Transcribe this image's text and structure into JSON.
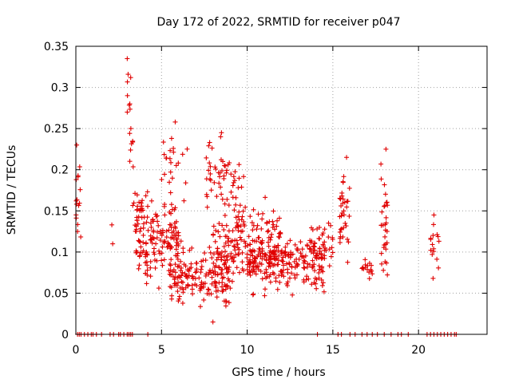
{
  "chart_data": {
    "type": "scatter",
    "title": "Day 172 of 2022, SRMTID for receiver p047",
    "xlabel": "GPS time / hours",
    "ylabel": "SRMTID / TECUs",
    "xlim": [
      0,
      24
    ],
    "ylim": [
      0,
      0.35
    ],
    "xticks": [
      0,
      5,
      10,
      15,
      20
    ],
    "yticks": [
      0,
      0.05,
      0.1,
      0.15,
      0.2,
      0.25,
      0.3,
      0.35
    ],
    "xtick_labels": [
      "0",
      "5",
      "10",
      "15",
      "20"
    ],
    "ytick_labels": [
      "0",
      "0.05",
      "0.1",
      "0.15",
      "0.2",
      "0.25",
      "0.3",
      "0.35"
    ],
    "grid": true,
    "marker": "+",
    "color": "#e00000",
    "series": [
      {
        "name": "SRMTID",
        "clusters": [
          {
            "x": [
              0.0,
              0.3
            ],
            "y": [
              0.11,
              0.24
            ],
            "n": 14
          },
          {
            "x": [
              3.0,
              3.4
            ],
            "y": [
              0.17,
              0.34
            ],
            "n": 12
          },
          {
            "x": [
              3.3,
              4.2
            ],
            "y": [
              0.1,
              0.19
            ],
            "n": 30
          },
          {
            "x": [
              3.5,
              6.0
            ],
            "y": [
              0.04,
              0.18
            ],
            "n": 140
          },
          {
            "x": [
              5.0,
              6.5
            ],
            "y": [
              0.15,
              0.26
            ],
            "n": 22
          },
          {
            "x": [
              5.5,
              9.0
            ],
            "y": [
              0.02,
              0.12
            ],
            "n": 170
          },
          {
            "x": [
              7.5,
              10.0
            ],
            "y": [
              0.12,
              0.25
            ],
            "n": 60
          },
          {
            "x": [
              8.0,
              12.0
            ],
            "y": [
              0.05,
              0.17
            ],
            "n": 170
          },
          {
            "x": [
              10.0,
              14.5
            ],
            "y": [
              0.04,
              0.13
            ],
            "n": 200
          },
          {
            "x": [
              13.5,
              15.0
            ],
            "y": [
              0.05,
              0.16
            ],
            "n": 50
          },
          {
            "x": [
              15.4,
              16.0
            ],
            "y": [
              0.06,
              0.22
            ],
            "n": 35
          },
          {
            "x": [
              16.7,
              17.3
            ],
            "y": [
              0.06,
              0.1
            ],
            "n": 15
          },
          {
            "x": [
              17.8,
              18.2
            ],
            "y": [
              0.04,
              0.23
            ],
            "n": 30
          },
          {
            "x": [
              20.7,
              21.2
            ],
            "y": [
              0.07,
              0.15
            ],
            "n": 14
          }
        ],
        "points": [
          [
            0.05,
            0.23
          ],
          [
            0.1,
            0.125
          ],
          [
            3.0,
            0.335
          ],
          [
            3.05,
            0.316
          ],
          [
            3.2,
            0.312
          ],
          [
            3.15,
            0.28
          ],
          [
            3.0,
            0.27
          ],
          [
            5.8,
            0.258
          ],
          [
            8.5,
            0.245
          ],
          [
            8.45,
            0.24
          ],
          [
            2.1,
            0.133
          ],
          [
            2.15,
            0.11
          ],
          [
            8.0,
            0.015
          ],
          [
            18.1,
            0.225
          ],
          [
            20.9,
            0.145
          ],
          [
            20.85,
            0.068
          ],
          [
            15.8,
            0.215
          ]
        ],
        "zero_values_x": [
          0.1,
          0.2,
          0.3,
          0.5,
          0.7,
          0.9,
          1.0,
          1.2,
          1.5,
          2.0,
          2.2,
          2.5,
          2.6,
          2.8,
          3.0,
          3.1,
          3.2,
          3.3,
          4.2,
          14.1,
          15.3,
          15.5,
          16.0,
          16.3,
          16.7,
          17.0,
          17.3,
          17.6,
          18.0,
          18.4,
          18.8,
          19.0,
          19.4,
          20.5,
          20.7,
          20.9,
          21.1,
          21.3,
          21.5,
          21.7,
          21.9,
          22.1,
          22.2
        ]
      }
    ]
  }
}
